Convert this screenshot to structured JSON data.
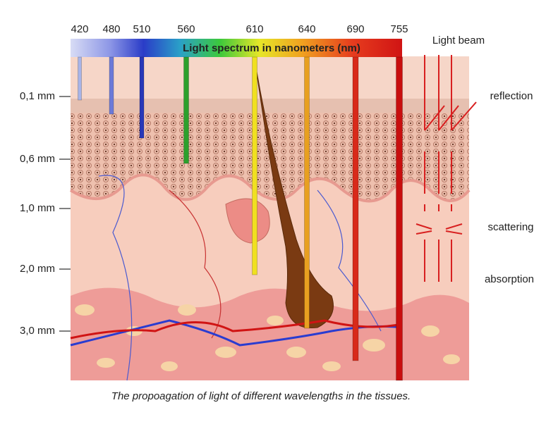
{
  "spectrum": {
    "title": "Light spectrum in nanometers (nm)",
    "wavelengths": [
      "420",
      "480",
      "510",
      "560",
      "610",
      "640",
      "690",
      "755"
    ]
  },
  "depths": [
    "0,1 mm",
    "0,6 mm",
    "1,0 mm",
    "2,0 mm",
    "3,0 mm"
  ],
  "legend": {
    "light_beam": "Light beam",
    "reflection": "reflection",
    "scattering": "scattering",
    "absorption": "absorption"
  },
  "caption": "The propoagation of light of different wavelengths in the tissues."
}
